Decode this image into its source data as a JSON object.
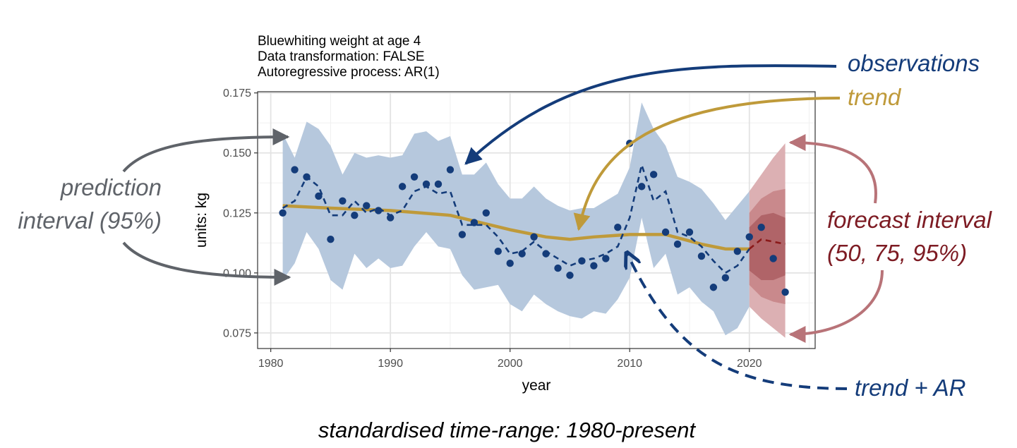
{
  "chart_data": {
    "type": "line",
    "title": [
      "Bluewhiting weight at age 4",
      "Data transformation: FALSE",
      "Autoregressive process: AR(1)"
    ],
    "xlabel": "year",
    "ylabel": "units: kg",
    "xlim": [
      1978.9,
      2025.5
    ],
    "ylim": [
      0.0685,
      0.1755
    ],
    "x_ticks": [
      1980,
      1990,
      2000,
      2010,
      2020
    ],
    "x_minor_ticks": [
      1985,
      1995,
      2005,
      2015,
      2025
    ],
    "y_ticks": [
      0.075,
      0.1,
      0.125,
      0.15,
      0.175
    ],
    "y_tick_labels": [
      "0.075",
      "0.100",
      "0.125",
      "0.150",
      "0.175"
    ],
    "y_minor_ticks": [
      0.0875,
      0.1125,
      0.1375,
      0.1625
    ],
    "grid": true,
    "colors": {
      "observations": "#143c7a",
      "trend": "#bf9a3a",
      "prediction_band": "#b6c8dd",
      "forecast_95": "#dcb0b3",
      "forecast_75": "#c9898c",
      "forecast_50": "#b06468",
      "forecast_line": "#8b1a1a",
      "prediction_arrow": "#5f6369",
      "forecast_arrow": "#b87378"
    },
    "observations": {
      "x": [
        1981,
        1982,
        1983,
        1984,
        1985,
        1986,
        1987,
        1988,
        1989,
        1990,
        1991,
        1992,
        1993,
        1994,
        1995,
        1996,
        1997,
        1998,
        1999,
        2000,
        2001,
        2002,
        2003,
        2004,
        2005,
        2006,
        2007,
        2008,
        2009,
        2010,
        2011,
        2012,
        2013,
        2014,
        2015,
        2016,
        2017,
        2018,
        2019,
        2020,
        2021,
        2022,
        2023
      ],
      "y": [
        0.125,
        0.143,
        0.14,
        0.132,
        0.114,
        0.13,
        0.124,
        0.128,
        0.126,
        0.123,
        0.136,
        0.14,
        0.137,
        0.137,
        0.143,
        0.116,
        0.121,
        0.125,
        0.109,
        0.104,
        0.108,
        0.115,
        0.108,
        0.102,
        0.099,
        0.105,
        0.103,
        0.106,
        0.119,
        0.154,
        0.136,
        0.141,
        0.117,
        0.112,
        0.117,
        0.107,
        0.094,
        0.098,
        0.109,
        0.115,
        0.119,
        0.106,
        0.092
      ]
    },
    "trend_ar": {
      "x": [
        1981,
        1982,
        1983,
        1984,
        1985,
        1986,
        1987,
        1988,
        1989,
        1990,
        1991,
        1992,
        1993,
        1994,
        1995,
        1996,
        1997,
        1998,
        1999,
        2000,
        2001,
        2002,
        2003,
        2004,
        2005,
        2006,
        2007,
        2008,
        2009,
        2010,
        2011,
        2012,
        2013,
        2014,
        2015,
        2016,
        2017,
        2018,
        2019,
        2020
      ],
      "y": [
        0.127,
        0.13,
        0.14,
        0.136,
        0.124,
        0.124,
        0.13,
        0.125,
        0.127,
        0.124,
        0.126,
        0.134,
        0.136,
        0.133,
        0.134,
        0.12,
        0.12,
        0.12,
        0.115,
        0.108,
        0.109,
        0.113,
        0.109,
        0.106,
        0.103,
        0.105,
        0.106,
        0.108,
        0.111,
        0.123,
        0.145,
        0.13,
        0.134,
        0.117,
        0.115,
        0.111,
        0.105,
        0.1,
        0.103,
        0.11
      ]
    },
    "trend": {
      "x": [
        1981,
        1985,
        1990,
        1995,
        2000,
        2003,
        2005,
        2007,
        2010,
        2013,
        2016,
        2018,
        2020
      ],
      "y": [
        0.128,
        0.127,
        0.126,
        0.124,
        0.118,
        0.115,
        0.114,
        0.115,
        0.116,
        0.116,
        0.112,
        0.11,
        0.11
      ]
    },
    "prediction_interval_95": {
      "x": [
        1981,
        1982,
        1983,
        1984,
        1985,
        1986,
        1987,
        1988,
        1989,
        1990,
        1991,
        1992,
        1993,
        1994,
        1995,
        1996,
        1997,
        1998,
        1999,
        2000,
        2001,
        2002,
        2003,
        2004,
        2005,
        2006,
        2007,
        2008,
        2009,
        2010,
        2011,
        2012,
        2013,
        2014,
        2015,
        2016,
        2017,
        2018,
        2019,
        2020
      ],
      "lower": [
        0.097,
        0.104,
        0.117,
        0.11,
        0.097,
        0.093,
        0.108,
        0.102,
        0.106,
        0.102,
        0.103,
        0.111,
        0.117,
        0.111,
        0.11,
        0.099,
        0.093,
        0.094,
        0.095,
        0.087,
        0.084,
        0.091,
        0.087,
        0.084,
        0.082,
        0.081,
        0.084,
        0.083,
        0.089,
        0.098,
        0.123,
        0.102,
        0.108,
        0.091,
        0.094,
        0.088,
        0.084,
        0.074,
        0.077,
        0.086
      ],
      "upper": [
        0.158,
        0.148,
        0.163,
        0.16,
        0.153,
        0.141,
        0.15,
        0.148,
        0.149,
        0.148,
        0.149,
        0.158,
        0.159,
        0.155,
        0.157,
        0.141,
        0.141,
        0.146,
        0.137,
        0.131,
        0.131,
        0.136,
        0.131,
        0.128,
        0.126,
        0.127,
        0.127,
        0.13,
        0.133,
        0.144,
        0.171,
        0.16,
        0.153,
        0.14,
        0.138,
        0.135,
        0.129,
        0.122,
        0.128,
        0.134
      ]
    },
    "forecast": {
      "x": [
        2020,
        2021,
        2022,
        2023
      ],
      "mean": [
        0.11,
        0.114,
        0.113,
        0.112
      ],
      "lower_95": [
        0.086,
        0.081,
        0.077,
        0.073
      ],
      "upper_95": [
        0.134,
        0.141,
        0.148,
        0.154
      ],
      "lower_75": [
        0.095,
        0.09,
        0.088,
        0.087
      ],
      "upper_75": [
        0.125,
        0.131,
        0.134,
        0.135
      ],
      "lower_50": [
        0.101,
        0.097,
        0.097,
        0.099
      ],
      "upper_50": [
        0.119,
        0.124,
        0.125,
        0.123
      ]
    }
  },
  "annotations": {
    "observations": "observations",
    "trend": "trend",
    "prediction_line1": "prediction",
    "prediction_line2": "interval (95%)",
    "forecast_line1": "forecast interval",
    "forecast_line2": "(50, 75, 95%)",
    "trend_ar": "trend + AR"
  },
  "footer": "standardised time-range: 1980-present"
}
